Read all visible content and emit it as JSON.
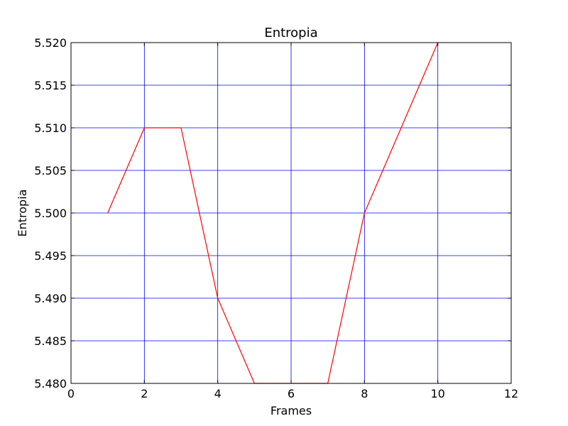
{
  "chart_data": {
    "type": "line",
    "title": "Entropia",
    "xlabel": "Frames",
    "ylabel": "Entropia",
    "xlim": [
      0,
      12
    ],
    "ylim": [
      5.48,
      5.52
    ],
    "xticks": [
      0,
      2,
      4,
      6,
      8,
      10,
      12
    ],
    "yticks": [
      5.48,
      5.485,
      5.49,
      5.495,
      5.5,
      5.505,
      5.51,
      5.515,
      5.52
    ],
    "xtick_labels": [
      "0",
      "2",
      "4",
      "6",
      "8",
      "10",
      "12"
    ],
    "ytick_labels": [
      "5.480",
      "5.485",
      "5.490",
      "5.495",
      "5.500",
      "5.505",
      "5.510",
      "5.515",
      "5.520"
    ],
    "grid": true,
    "series": [
      {
        "x": [
          1,
          2,
          3,
          4,
          5,
          6,
          7,
          8,
          9,
          10
        ],
        "y": [
          5.5,
          5.51,
          5.51,
          5.49,
          5.48,
          5.48,
          5.48,
          5.5,
          5.51,
          5.52
        ],
        "color": "#ff0000"
      }
    ],
    "colors": {
      "grid": "#0000ff",
      "axes": "#000000"
    }
  }
}
